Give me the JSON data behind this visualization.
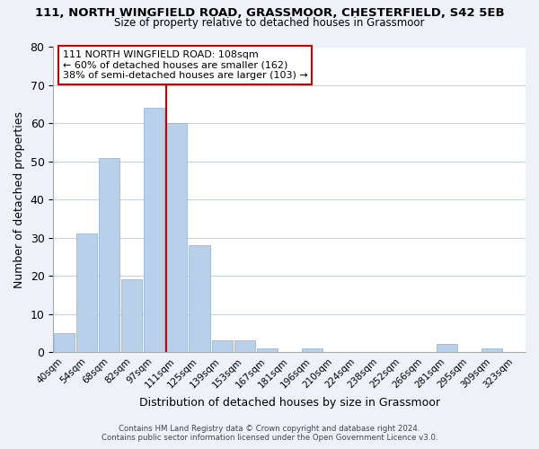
{
  "title": "111, NORTH WINGFIELD ROAD, GRASSMOOR, CHESTERFIELD, S42 5EB",
  "subtitle": "Size of property relative to detached houses in Grassmoor",
  "xlabel": "Distribution of detached houses by size in Grassmoor",
  "ylabel": "Number of detached properties",
  "bar_labels": [
    "40sqm",
    "54sqm",
    "68sqm",
    "82sqm",
    "97sqm",
    "111sqm",
    "125sqm",
    "139sqm",
    "153sqm",
    "167sqm",
    "181sqm",
    "196sqm",
    "210sqm",
    "224sqm",
    "238sqm",
    "252sqm",
    "266sqm",
    "281sqm",
    "295sqm",
    "309sqm",
    "323sqm"
  ],
  "bar_values": [
    5,
    31,
    51,
    19,
    64,
    60,
    28,
    3,
    3,
    1,
    0,
    1,
    0,
    0,
    0,
    0,
    0,
    2,
    0,
    1,
    0
  ],
  "bar_color": "#b8d0ea",
  "vline_index": 5,
  "vline_color": "#cc0000",
  "ylim": [
    0,
    80
  ],
  "yticks": [
    0,
    10,
    20,
    30,
    40,
    50,
    60,
    70,
    80
  ],
  "annotation_title": "111 NORTH WINGFIELD ROAD: 108sqm",
  "annotation_line1": "← 60% of detached houses are smaller (162)",
  "annotation_line2": "38% of semi-detached houses are larger (103) →",
  "footer1": "Contains HM Land Registry data © Crown copyright and database right 2024.",
  "footer2": "Contains public sector information licensed under the Open Government Licence v3.0.",
  "background_color": "#eef2f8",
  "plot_bg_color": "#ffffff",
  "grid_color": "#c8d0df"
}
